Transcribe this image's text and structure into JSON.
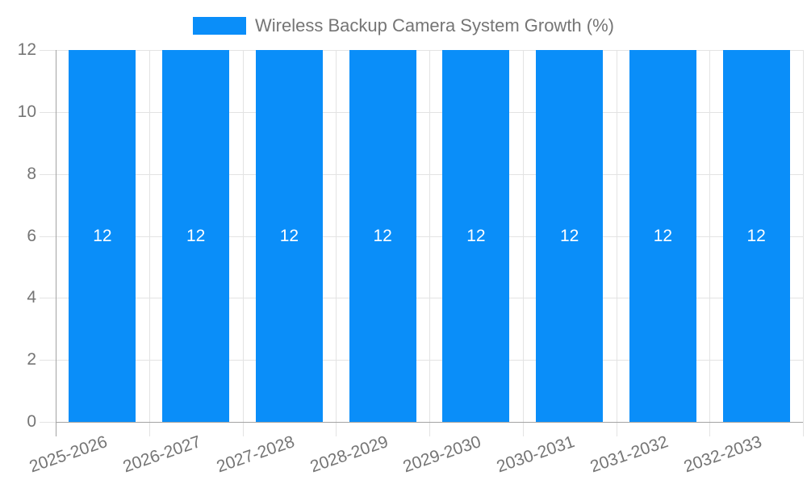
{
  "chart_data": {
    "type": "bar",
    "title": "Wireless Backup Camera System Growth (%)",
    "legend": {
      "label": "Wireless Backup Camera System Growth (%)",
      "position": "top-center"
    },
    "categories": [
      "2025-2026",
      "2026-2027",
      "2027-2028",
      "2028-2029",
      "2029-2030",
      "2030-2031",
      "2031-2032",
      "2032-2033"
    ],
    "values": [
      12,
      12,
      12,
      12,
      12,
      12,
      12,
      12
    ],
    "xlabel": "",
    "ylabel": "",
    "ylim": [
      0,
      12
    ],
    "yticks": [
      0,
      2,
      4,
      6,
      8,
      10,
      12
    ],
    "grid": {
      "horizontal": true,
      "vertical": true
    },
    "x_tick_label_rotation_deg": -19,
    "colors": {
      "bar": "#0a8ef9",
      "bar_value_label": "#ffffff",
      "axis_line": "#a3a3a3",
      "gridline": "#e3e3e3",
      "tick_text": "#757575",
      "legend_text": "#757575",
      "background": "#ffffff"
    }
  }
}
